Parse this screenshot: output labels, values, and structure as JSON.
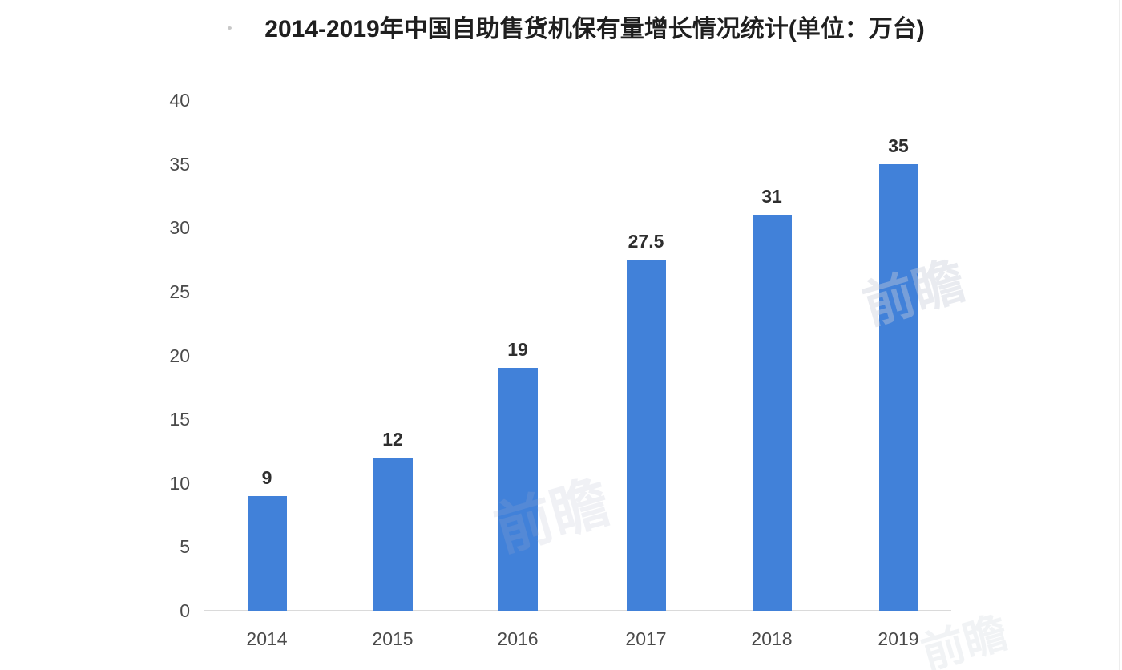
{
  "page": {
    "background": "#ffffff"
  },
  "chart_data": {
    "type": "bar",
    "title": "2014-2019年中国自助售货机保有量增长情况统计(单位：万台)",
    "unit": "万台",
    "categories": [
      "2014",
      "2015",
      "2016",
      "2017",
      "2018",
      "2019"
    ],
    "values": [
      9,
      12,
      19,
      27.5,
      31,
      35
    ],
    "value_labels": [
      "9",
      "12",
      "19",
      "27.5",
      "31",
      "35"
    ],
    "xlabel": "",
    "ylabel": "",
    "ylim": [
      0,
      40
    ],
    "yticks": [
      0,
      5,
      10,
      15,
      20,
      25,
      30,
      35,
      40
    ],
    "grid": false,
    "legend_position": "none",
    "colors": {
      "bar": "#4181d9",
      "axis_line": "#dadada",
      "tick_text": "#4a4a4a",
      "value_text": "#2e2e2e",
      "title_text": "#1f1f1f"
    }
  },
  "watermark": {
    "text": "前瞻"
  }
}
